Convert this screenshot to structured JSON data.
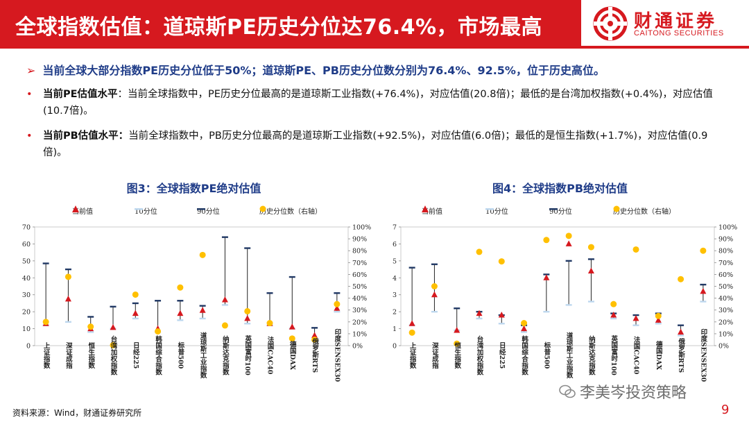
{
  "slide": {
    "title": "全球指数估值：道琼斯PE历史分位达76.4%，市场最高",
    "logo_cn": "财通证券",
    "logo_en": "CAITONG SECURITIES",
    "headline": "当前全球大部分指数PE历史分位低于50%；道琼斯PE、PB历史分位数分别为76.4%、92.5%，位于历史高位。",
    "headline_arrow": "➢",
    "bullet_mark": "•",
    "bullets": [
      {
        "label": "当前PE估值水平",
        "text": "：当前全球指数中，PE历史分位最高的是道琼斯工业指数(+76.4%)，对应估值(20.8倍)；最低的是台湾加权指数(+0.4%)，对应估值(10.7倍)。"
      },
      {
        "label": "当前PB估值水平：",
        "text": "当前全球指数中，PB历史分位最高的是道琼斯工业指数(+92.5%)，对应估值(6.0倍)；最低的是恒生指数(+1.7%)，对应估值(0.9倍)。"
      }
    ],
    "source": "资料来源：Wind，财通证券研究所",
    "page_number": "9",
    "watermark": "李美岑投资策略"
  },
  "legend": {
    "current": "当前值",
    "p10": "10分位",
    "p90": "90分位",
    "pct": "历史分位数（右轴）"
  },
  "colors": {
    "brand_red": "#d6191f",
    "navy": "#1f3c88",
    "current_marker": "#d6191f",
    "p10_marker": "#bdd7ee",
    "p90_marker": "#203864",
    "pct_marker": "#ffc000"
  },
  "chart_data": [
    {
      "type": "scatter",
      "title": "图3：全球指数PE绝对估值",
      "categories": [
        "上证指数",
        "深证成指",
        "恒生指数",
        "台湾加权指数",
        "日经225",
        "韩国综合指数",
        "标普500",
        "道琼斯工业指数",
        "纳斯达克指数",
        "英国富时100",
        "法国CAC40",
        "德国DAX",
        "俄罗斯RTS",
        "印度SENSEX30"
      ],
      "ylim": [
        0,
        70
      ],
      "yticks": [
        "0",
        "10",
        "20",
        "30",
        "40",
        "50",
        "60",
        "70"
      ],
      "y2lim": [
        0,
        100
      ],
      "y2ticks": [
        "0%",
        "10%",
        "20%",
        "30%",
        "40%",
        "50%",
        "60%",
        "70%",
        "80%",
        "90%",
        "100%"
      ],
      "series": [
        {
          "name": "当前值",
          "values": [
            13,
            27.5,
            10,
            10.7,
            19,
            10,
            19,
            20.8,
            27,
            16,
            13,
            11,
            6,
            22
          ]
        },
        {
          "name": "10分位",
          "values": [
            12,
            14,
            8,
            10,
            16,
            8,
            15,
            16,
            24,
            13,
            12,
            10,
            3,
            20
          ]
        },
        {
          "name": "90分位",
          "values": [
            48.5,
            45,
            17,
            23,
            25,
            26.5,
            26.5,
            23.5,
            64,
            57.5,
            31,
            40.5,
            10.5,
            31
          ]
        },
        {
          "name": "历史分位数（右轴）",
          "values": [
            20,
            58,
            16,
            0.4,
            43,
            12,
            49,
            76.4,
            17,
            29,
            19,
            6,
            5,
            35
          ]
        }
      ]
    },
    {
      "type": "scatter",
      "title": "图4：全球指数PB绝对估值",
      "categories": [
        "上证指数",
        "深证成指",
        "恒生指数",
        "台湾加权指数",
        "日经225",
        "韩国综合指数",
        "标普500",
        "道琼斯工业指数",
        "纳斯达克指数",
        "英国富时100",
        "法国CAC40",
        "德国DAX",
        "俄罗斯RTS",
        "印度SENSEX30"
      ],
      "ylim": [
        0,
        7
      ],
      "yticks": [
        "0",
        "1",
        "2",
        "3",
        "4",
        "5",
        "6",
        "7"
      ],
      "y2lim": [
        0,
        100
      ],
      "y2ticks": [
        "0%",
        "10%",
        "20%",
        "30%",
        "40%",
        "50%",
        "60%",
        "70%",
        "80%",
        "90%",
        "100%"
      ],
      "series": [
        {
          "name": "当前值",
          "values": [
            1.3,
            3.0,
            0.9,
            1.9,
            1.8,
            1.0,
            4.0,
            6.0,
            4.4,
            1.8,
            1.6,
            1.5,
            0.8,
            3.2
          ]
        },
        {
          "name": "10分位",
          "values": [
            1.2,
            2.0,
            0.9,
            1.6,
            1.3,
            0.8,
            2.0,
            2.4,
            2.6,
            1.6,
            1.2,
            1.3,
            0.6,
            2.6
          ]
        },
        {
          "name": "90分位",
          "values": [
            4.6,
            4.8,
            2.2,
            2.0,
            1.8,
            1.2,
            4.2,
            5.0,
            5.1,
            1.9,
            1.8,
            1.9,
            1.2,
            3.6
          ]
        },
        {
          "name": "历史分位数（右轴）",
          "values": [
            11,
            50,
            1.7,
            79,
            71,
            19,
            89,
            92.5,
            83,
            35,
            81,
            25,
            56,
            80
          ]
        }
      ]
    }
  ]
}
